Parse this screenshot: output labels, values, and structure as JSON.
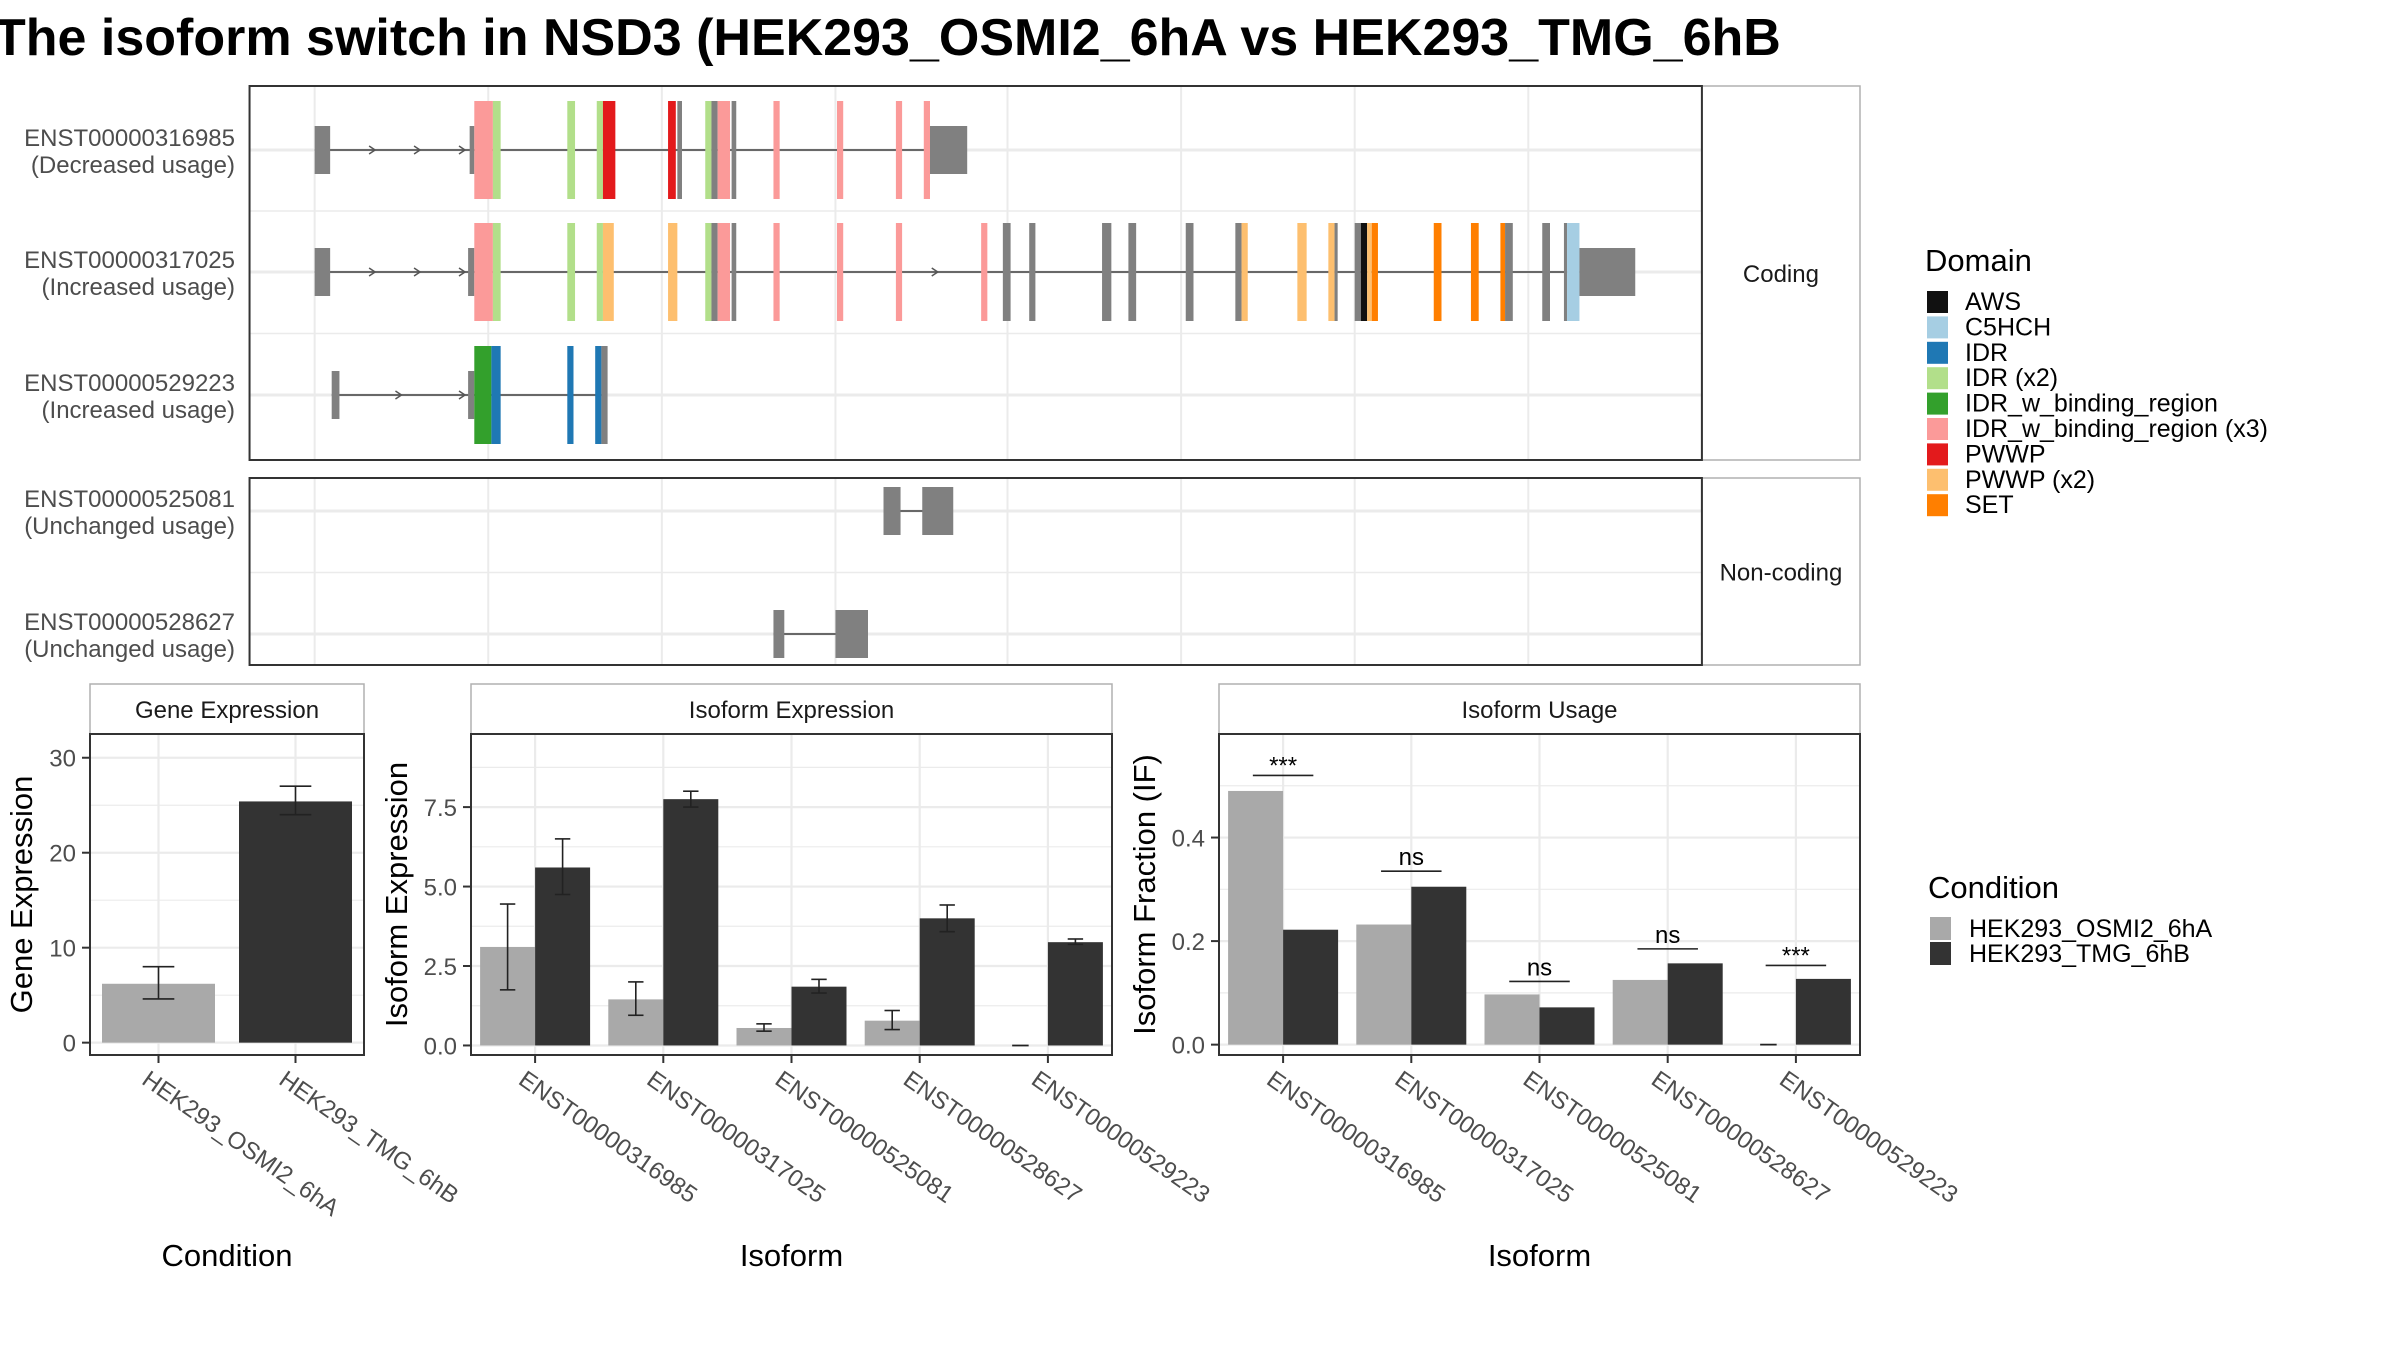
{
  "title": "The isoform switch in NSD3 (HEK293_OSMI2_6hA vs HEK293_TMG_6hB",
  "colors": {
    "intron": "#555555",
    "exon_plain": "#808080",
    "condition_A": "#A9A9A9",
    "condition_B": "#333333",
    "grid": "#EBEBEB",
    "panel_border": "#333333",
    "strip_border": "#B0B0B0",
    "strip_fill": "#FFFFFF",
    "axis_text": "#4D4D4D"
  },
  "legend_domain": {
    "title": "Domain",
    "items": [
      {
        "label": "AWS",
        "color": "#111111"
      },
      {
        "label": "C5HCH",
        "color": "#A6CEE3"
      },
      {
        "label": "IDR",
        "color": "#1F78B4"
      },
      {
        "label": "IDR (x2)",
        "color": "#B2DF8A"
      },
      {
        "label": "IDR_w_binding_region",
        "color": "#33A02C"
      },
      {
        "label": "IDR_w_binding_region (x3)",
        "color": "#FB9A99"
      },
      {
        "label": "PWWP",
        "color": "#E31A1C"
      },
      {
        "label": "PWWP (x2)",
        "color": "#FDBF6F"
      },
      {
        "label": "SET",
        "color": "#FF7F00"
      }
    ]
  },
  "legend_condition": {
    "title": "Condition",
    "items": [
      {
        "label": "HEK293_OSMI2_6hA",
        "color": "#A9A9A9"
      },
      {
        "label": "HEK293_TMG_6hB",
        "color": "#333333"
      }
    ]
  },
  "structure": {
    "facets": [
      {
        "label": "Coding",
        "rows": 3
      },
      {
        "label": "Non-coding",
        "rows": 2
      }
    ],
    "transcripts": [
      {
        "id": "ENST00000316985",
        "usage": "(Decreased usage)",
        "facet": "Coding",
        "intron": [
          203,
          598
        ],
        "arrows": [
          242,
          271,
          300
        ],
        "exons": [
          [
            203,
            10,
            "#808080",
            "utr"
          ],
          [
            303,
            3,
            "#808080",
            "utr"
          ],
          [
            306,
            12,
            "#FB9A99",
            "cds"
          ],
          [
            318,
            5,
            "#B2DF8A",
            "cds"
          ],
          [
            366,
            5,
            "#B2DF8A",
            "cds"
          ],
          [
            385,
            4,
            "#B2DF8A",
            "cds"
          ],
          [
            389,
            8,
            "#E31A1C",
            "cds"
          ],
          [
            431,
            5,
            "#E31A1C",
            "cds"
          ],
          [
            437,
            3,
            "#808080",
            "cds"
          ],
          [
            455,
            4,
            "#B2DF8A",
            "cds"
          ],
          [
            459,
            4,
            "#808080",
            "cds"
          ],
          [
            463,
            8,
            "#FB9A99",
            "cds"
          ],
          [
            472,
            3,
            "#808080",
            "cds"
          ],
          [
            499,
            4,
            "#FB9A99",
            "cds"
          ],
          [
            540,
            4,
            "#FB9A99",
            "cds"
          ],
          [
            578,
            4,
            "#FB9A99",
            "cds"
          ],
          [
            596,
            4,
            "#FB9A99",
            "cds"
          ],
          [
            600,
            24,
            "#808080",
            "utr"
          ]
        ]
      },
      {
        "id": "ENST00000317025",
        "usage": "(Increased usage)",
        "facet": "Coding",
        "intron": [
          203,
          1019
        ],
        "arrows": [
          242,
          271,
          300,
          605
        ],
        "exons": [
          [
            203,
            10,
            "#808080",
            "utr"
          ],
          [
            302,
            4,
            "#808080",
            "utr"
          ],
          [
            306,
            12,
            "#FB9A99",
            "cds"
          ],
          [
            318,
            5,
            "#B2DF8A",
            "cds"
          ],
          [
            366,
            5,
            "#B2DF8A",
            "cds"
          ],
          [
            385,
            4,
            "#B2DF8A",
            "cds"
          ],
          [
            389,
            7,
            "#FDBF6F",
            "cds"
          ],
          [
            431,
            6,
            "#FDBF6F",
            "cds"
          ],
          [
            455,
            4,
            "#B2DF8A",
            "cds"
          ],
          [
            459,
            4,
            "#808080",
            "cds"
          ],
          [
            463,
            8,
            "#FB9A99",
            "cds"
          ],
          [
            472,
            3,
            "#808080",
            "cds"
          ],
          [
            499,
            4,
            "#FB9A99",
            "cds"
          ],
          [
            540,
            4,
            "#FB9A99",
            "cds"
          ],
          [
            578,
            4,
            "#FB9A99",
            "cds"
          ],
          [
            633,
            4,
            "#FB9A99",
            "cds"
          ],
          [
            647,
            5,
            "#808080",
            "cds"
          ],
          [
            664,
            4,
            "#808080",
            "cds"
          ],
          [
            711,
            6,
            "#808080",
            "cds"
          ],
          [
            728,
            5,
            "#808080",
            "cds"
          ],
          [
            765,
            5,
            "#808080",
            "cds"
          ],
          [
            797,
            4,
            "#808080",
            "cds"
          ],
          [
            801,
            4,
            "#FDBF6F",
            "cds"
          ],
          [
            837,
            6,
            "#FDBF6F",
            "cds"
          ],
          [
            857,
            4,
            "#FDBF6F",
            "cds"
          ],
          [
            861,
            2,
            "#808080",
            "cds"
          ],
          [
            874,
            4,
            "#808080",
            "cds"
          ],
          [
            878,
            4,
            "#111111",
            "cds"
          ],
          [
            882,
            3,
            "#FDBF6F",
            "cds"
          ],
          [
            885,
            4,
            "#FF7F00",
            "cds"
          ],
          [
            925,
            5,
            "#FF7F00",
            "cds"
          ],
          [
            949,
            5,
            "#FF7F00",
            "cds"
          ],
          [
            968,
            3,
            "#FF7F00",
            "cds"
          ],
          [
            971,
            5,
            "#808080",
            "cds"
          ],
          [
            995,
            5,
            "#808080",
            "cds"
          ],
          [
            1009,
            2,
            "#808080",
            "cds"
          ],
          [
            1011,
            8,
            "#A6CEE3",
            "cds"
          ],
          [
            1019,
            36,
            "#808080",
            "utr"
          ]
        ]
      },
      {
        "id": "ENST00000529223",
        "usage": "(Increased usage)",
        "facet": "Coding",
        "intron": [
          214,
          390
        ],
        "arrows": [
          259,
          300
        ],
        "exons": [
          [
            214,
            5,
            "#808080",
            "utr"
          ],
          [
            302,
            4,
            "#808080",
            "utr"
          ],
          [
            306,
            11,
            "#33A02C",
            "cds"
          ],
          [
            317,
            6,
            "#1F78B4",
            "cds"
          ],
          [
            366,
            4,
            "#1F78B4",
            "cds"
          ],
          [
            384,
            4,
            "#1F78B4",
            "cds"
          ],
          [
            388,
            4,
            "#808080",
            "cds"
          ]
        ]
      },
      {
        "id": "ENST00000525081",
        "usage": "(Unchanged usage)",
        "facet": "Non-coding",
        "intron": [
          570,
          614
        ],
        "arrows": [],
        "exons": [
          [
            570,
            11,
            "#808080",
            "utr"
          ],
          [
            595,
            20,
            "#808080",
            "utr"
          ]
        ]
      },
      {
        "id": "ENST00000528627",
        "usage": "(Unchanged usage)",
        "facet": "Non-coding",
        "intron": [
          499,
          560
        ],
        "arrows": [],
        "exons": [
          [
            499,
            7,
            "#808080",
            "utr"
          ],
          [
            539,
            21,
            "#808080",
            "utr"
          ]
        ]
      }
    ]
  },
  "chart_data": [
    {
      "type": "bar",
      "title": "Gene Expression",
      "xlabel": "Condition",
      "ylabel": "Gene Expression",
      "ylim": [
        -1.3,
        32.5
      ],
      "yticks": [
        0,
        10,
        20,
        30
      ],
      "ytick_labels": [
        "0",
        "10",
        "20",
        "30"
      ],
      "categories": [
        "HEK293_OSMI2_6hA",
        "HEK293_TMG_6hB"
      ],
      "series": [
        {
          "name": "HEK293_OSMI2_6hA",
          "values": [
            6.2,
            null
          ],
          "err": [
            [
              4.6,
              8.0
            ],
            null
          ]
        },
        {
          "name": "HEK293_TMG_6hB",
          "values": [
            null,
            25.4
          ],
          "err": [
            null,
            [
              24.0,
              27.0
            ]
          ]
        }
      ]
    },
    {
      "type": "bar",
      "title": "Isoform Expression",
      "xlabel": "Isoform",
      "ylabel": "Isoform Expression",
      "ylim": [
        -0.3,
        9.8
      ],
      "yticks": [
        0,
        2.5,
        5,
        7.5
      ],
      "ytick_labels": [
        "0.0",
        "2.5",
        "5.0",
        "7.5"
      ],
      "categories": [
        "ENST00000316985",
        "ENST00000317025",
        "ENST00000525081",
        "ENST00000528627",
        "ENST00000529223"
      ],
      "series": [
        {
          "name": "HEK293_OSMI2_6hA",
          "values": [
            3.1,
            1.45,
            0.55,
            0.78,
            0.0
          ],
          "err": [
            [
              1.75,
              4.45
            ],
            [
              0.95,
              2.0
            ],
            [
              0.45,
              0.68
            ],
            [
              0.5,
              1.1
            ],
            null
          ]
        },
        {
          "name": "HEK293_TMG_6hB",
          "values": [
            5.6,
            7.75,
            1.85,
            4.0,
            3.25
          ],
          "err": [
            [
              4.75,
              6.5
            ],
            [
              7.5,
              8.0
            ],
            [
              1.65,
              2.08
            ],
            [
              3.58,
              4.42
            ],
            [
              3.18,
              3.35
            ]
          ]
        }
      ]
    },
    {
      "type": "bar",
      "title": "Isoform Usage",
      "xlabel": "Isoform",
      "ylabel": "Isoform Fraction (IF)",
      "ylim": [
        -0.02,
        0.6
      ],
      "yticks": [
        0,
        0.2,
        0.4
      ],
      "ytick_labels": [
        "0.0",
        "0.2",
        "0.4"
      ],
      "categories": [
        "ENST00000316985",
        "ENST00000317025",
        "ENST00000525081",
        "ENST00000528627",
        "ENST00000529223"
      ],
      "series": [
        {
          "name": "HEK293_OSMI2_6hA",
          "values": [
            0.49,
            0.232,
            0.097,
            0.125,
            0.0
          ]
        },
        {
          "name": "HEK293_TMG_6hB",
          "values": [
            0.222,
            0.305,
            0.072,
            0.157,
            0.127
          ]
        }
      ],
      "annotations": [
        {
          "category": "ENST00000316985",
          "label": "***",
          "y": 0.52
        },
        {
          "category": "ENST00000317025",
          "label": "ns",
          "y": 0.335
        },
        {
          "category": "ENST00000525081",
          "label": "ns",
          "y": 0.122
        },
        {
          "category": "ENST00000528627",
          "label": "ns",
          "y": 0.185
        },
        {
          "category": "ENST00000529223",
          "label": "***",
          "y": 0.153
        }
      ]
    }
  ]
}
